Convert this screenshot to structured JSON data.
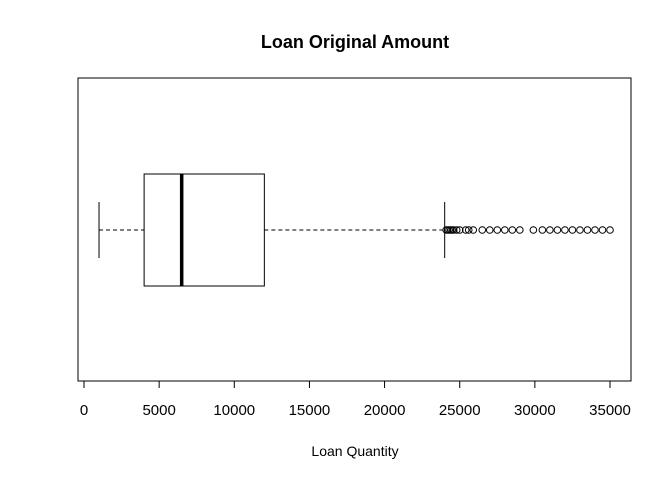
{
  "chart_data": {
    "type": "boxplot",
    "orientation": "horizontal",
    "title": "Loan Original Amount",
    "xlabel": "Loan Quantity",
    "ylabel": "",
    "xlim": [
      0,
      35000
    ],
    "xticks": [
      0,
      5000,
      10000,
      15000,
      20000,
      25000,
      30000,
      35000
    ],
    "xtick_labels": [
      "0",
      "5000",
      "10000",
      "15000",
      "20000",
      "25000",
      "30000",
      "35000"
    ],
    "grid": false,
    "box": {
      "whisker_low": 1000,
      "q1": 4000,
      "median": 6500,
      "q3": 12000,
      "whisker_high": 24000
    },
    "outliers": [
      24100,
      24200,
      24300,
      24400,
      24500,
      24600,
      24800,
      25000,
      25400,
      25600,
      25900,
      26500,
      27000,
      27500,
      28000,
      28500,
      29000,
      29900,
      30500,
      31000,
      31500,
      32000,
      32500,
      33000,
      33500,
      34000,
      34500,
      35000
    ],
    "colors": {
      "stroke": "#000000",
      "background": "#ffffff"
    }
  }
}
